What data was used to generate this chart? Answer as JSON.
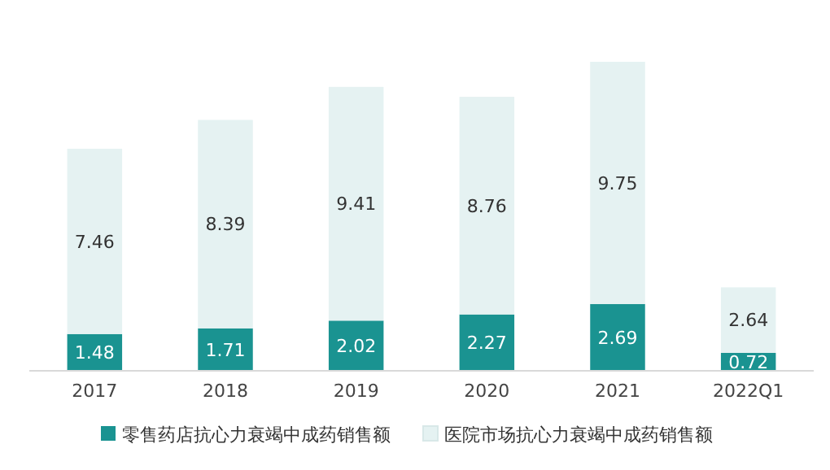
{
  "chart_data": {
    "type": "bar",
    "stacked": true,
    "data_labels": true,
    "legend": "bottom",
    "categories": [
      "2017",
      "2018",
      "2019",
      "2020",
      "2021",
      "2022Q1"
    ],
    "series": [
      {
        "name": "零售药店抗心力衰竭中成药销售额",
        "color": "#1a9391",
        "values": [
          1.48,
          1.71,
          2.02,
          2.27,
          2.69,
          0.72
        ]
      },
      {
        "name": "医院市场抗心力衰竭中成药销售额",
        "color": "#e5f2f2",
        "values": [
          7.46,
          8.39,
          9.41,
          8.76,
          9.75,
          2.64
        ]
      }
    ]
  }
}
